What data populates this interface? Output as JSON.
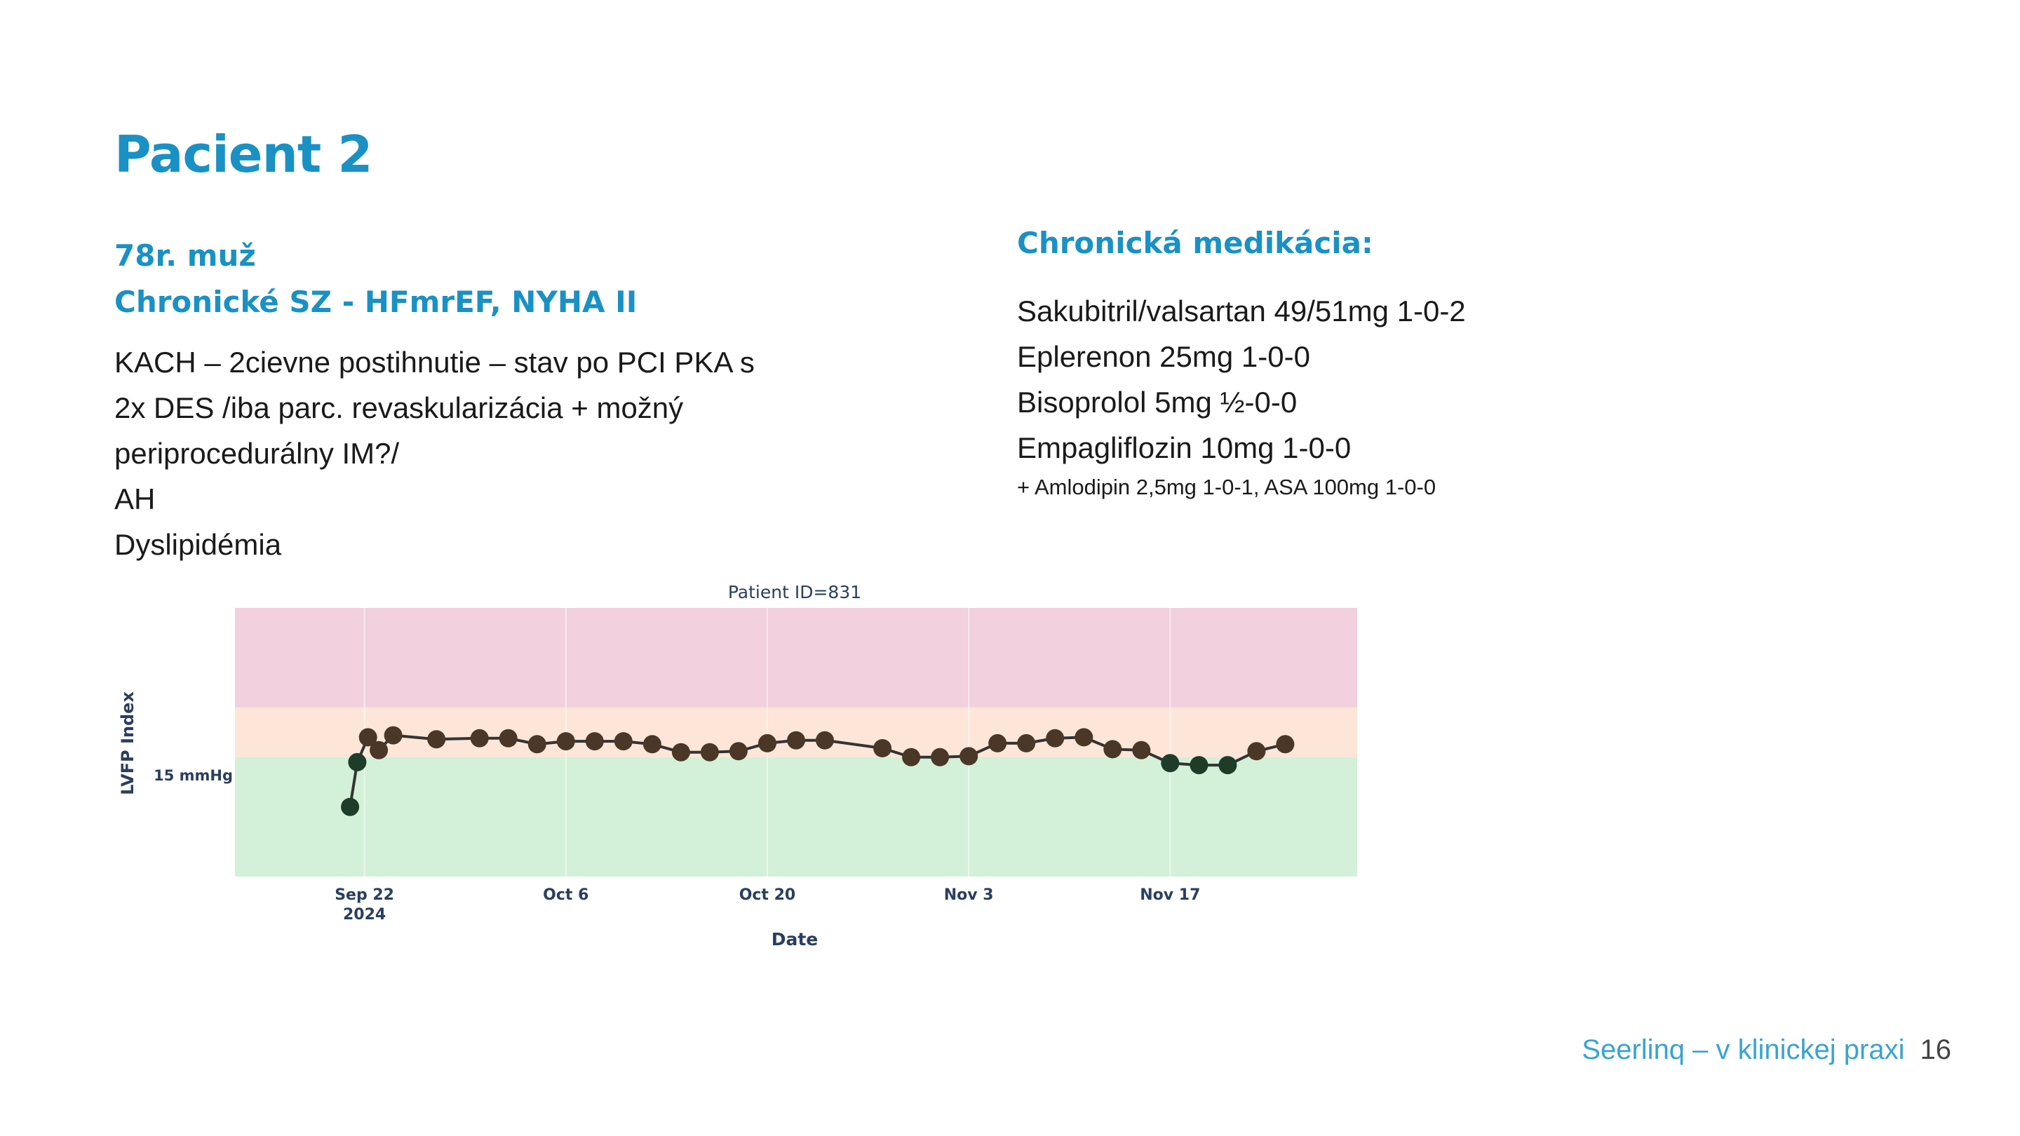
{
  "title": "Pacient 2",
  "patient": {
    "age_sex": "78r. muž",
    "condition": "Chronické SZ - HFmrEF, NYHA II"
  },
  "diagnoses": [
    "KACH – 2cievne postihnutie – stav po PCI PKA s",
    "2x DES /iba parc. revaskularizácia + možný",
    "periprocedurálny IM?/",
    "AH",
    "Dyslipidémia"
  ],
  "medication": {
    "heading": "Chronická medikácia:",
    "items": [
      "Sakubitril/valsartan 49/51mg 1-0-2",
      "Eplerenon 25mg 1-0-0",
      "Bisoprolol 5mg ½-0-0",
      "Empagliflozin 10mg 1-0-0"
    ],
    "note": "+ Amlodipin 2,5mg 1-0-1, ASA 100mg 1-0-0"
  },
  "chart_data": {
    "type": "scatter",
    "mode": "lines+markers",
    "title": "Patient ID=831",
    "xlabel": "Date",
    "ylabel": "LVFP Index",
    "y_tick_label": "15 mmHg",
    "y_tick_value": 15,
    "ylim": [
      3,
      30
    ],
    "xlim": [
      "2024-09-13",
      "2024-11-30"
    ],
    "x_ticks": [
      {
        "date": "2024-09-22",
        "label": "Sep 22",
        "sub": "2024"
      },
      {
        "date": "2024-10-06",
        "label": "Oct 6",
        "sub": ""
      },
      {
        "date": "2024-10-20",
        "label": "Oct 20",
        "sub": ""
      },
      {
        "date": "2024-11-03",
        "label": "Nov 3",
        "sub": ""
      },
      {
        "date": "2024-11-17",
        "label": "Nov 17",
        "sub": ""
      }
    ],
    "bands": [
      {
        "from": 3,
        "to": 15,
        "color": "#d3f0d8"
      },
      {
        "from": 15,
        "to": 20,
        "color": "#fde6d8"
      },
      {
        "from": 20,
        "to": 30,
        "color": "#f2d0dd"
      }
    ],
    "grid": true,
    "line_color": "#333333",
    "marker_color_high": "#4a3728",
    "marker_color_low": "#1e3d28",
    "points": [
      {
        "x": "2024-09-21",
        "y": 10.0
      },
      {
        "x": "2024-09-21 12:00",
        "y": 14.5
      },
      {
        "x": "2024-09-22 06:00",
        "y": 17.0
      },
      {
        "x": "2024-09-23",
        "y": 15.7
      },
      {
        "x": "2024-09-24",
        "y": 17.2
      },
      {
        "x": "2024-09-27",
        "y": 16.8
      },
      {
        "x": "2024-09-30",
        "y": 16.9
      },
      {
        "x": "2024-10-02",
        "y": 16.9
      },
      {
        "x": "2024-10-04",
        "y": 16.3
      },
      {
        "x": "2024-10-06",
        "y": 16.6
      },
      {
        "x": "2024-10-08",
        "y": 16.6
      },
      {
        "x": "2024-10-10",
        "y": 16.6
      },
      {
        "x": "2024-10-12",
        "y": 16.3
      },
      {
        "x": "2024-10-14",
        "y": 15.5
      },
      {
        "x": "2024-10-16",
        "y": 15.5
      },
      {
        "x": "2024-10-18",
        "y": 15.6
      },
      {
        "x": "2024-10-20",
        "y": 16.4
      },
      {
        "x": "2024-10-22",
        "y": 16.7
      },
      {
        "x": "2024-10-24",
        "y": 16.7
      },
      {
        "x": "2024-10-28",
        "y": 15.9
      },
      {
        "x": "2024-10-30",
        "y": 15.0
      },
      {
        "x": "2024-11-01",
        "y": 15.0
      },
      {
        "x": "2024-11-03",
        "y": 15.1
      },
      {
        "x": "2024-11-05",
        "y": 16.4
      },
      {
        "x": "2024-11-07",
        "y": 16.4
      },
      {
        "x": "2024-11-09",
        "y": 16.9
      },
      {
        "x": "2024-11-11",
        "y": 17.0
      },
      {
        "x": "2024-11-13",
        "y": 15.8
      },
      {
        "x": "2024-11-15",
        "y": 15.7
      },
      {
        "x": "2024-11-17",
        "y": 14.4
      },
      {
        "x": "2024-11-19",
        "y": 14.2
      },
      {
        "x": "2024-11-21",
        "y": 14.2
      },
      {
        "x": "2024-11-23",
        "y": 15.6
      },
      {
        "x": "2024-11-25",
        "y": 16.3
      }
    ]
  },
  "footer": {
    "brand": "Seerlinq – v klinickej praxi",
    "page": "16"
  }
}
